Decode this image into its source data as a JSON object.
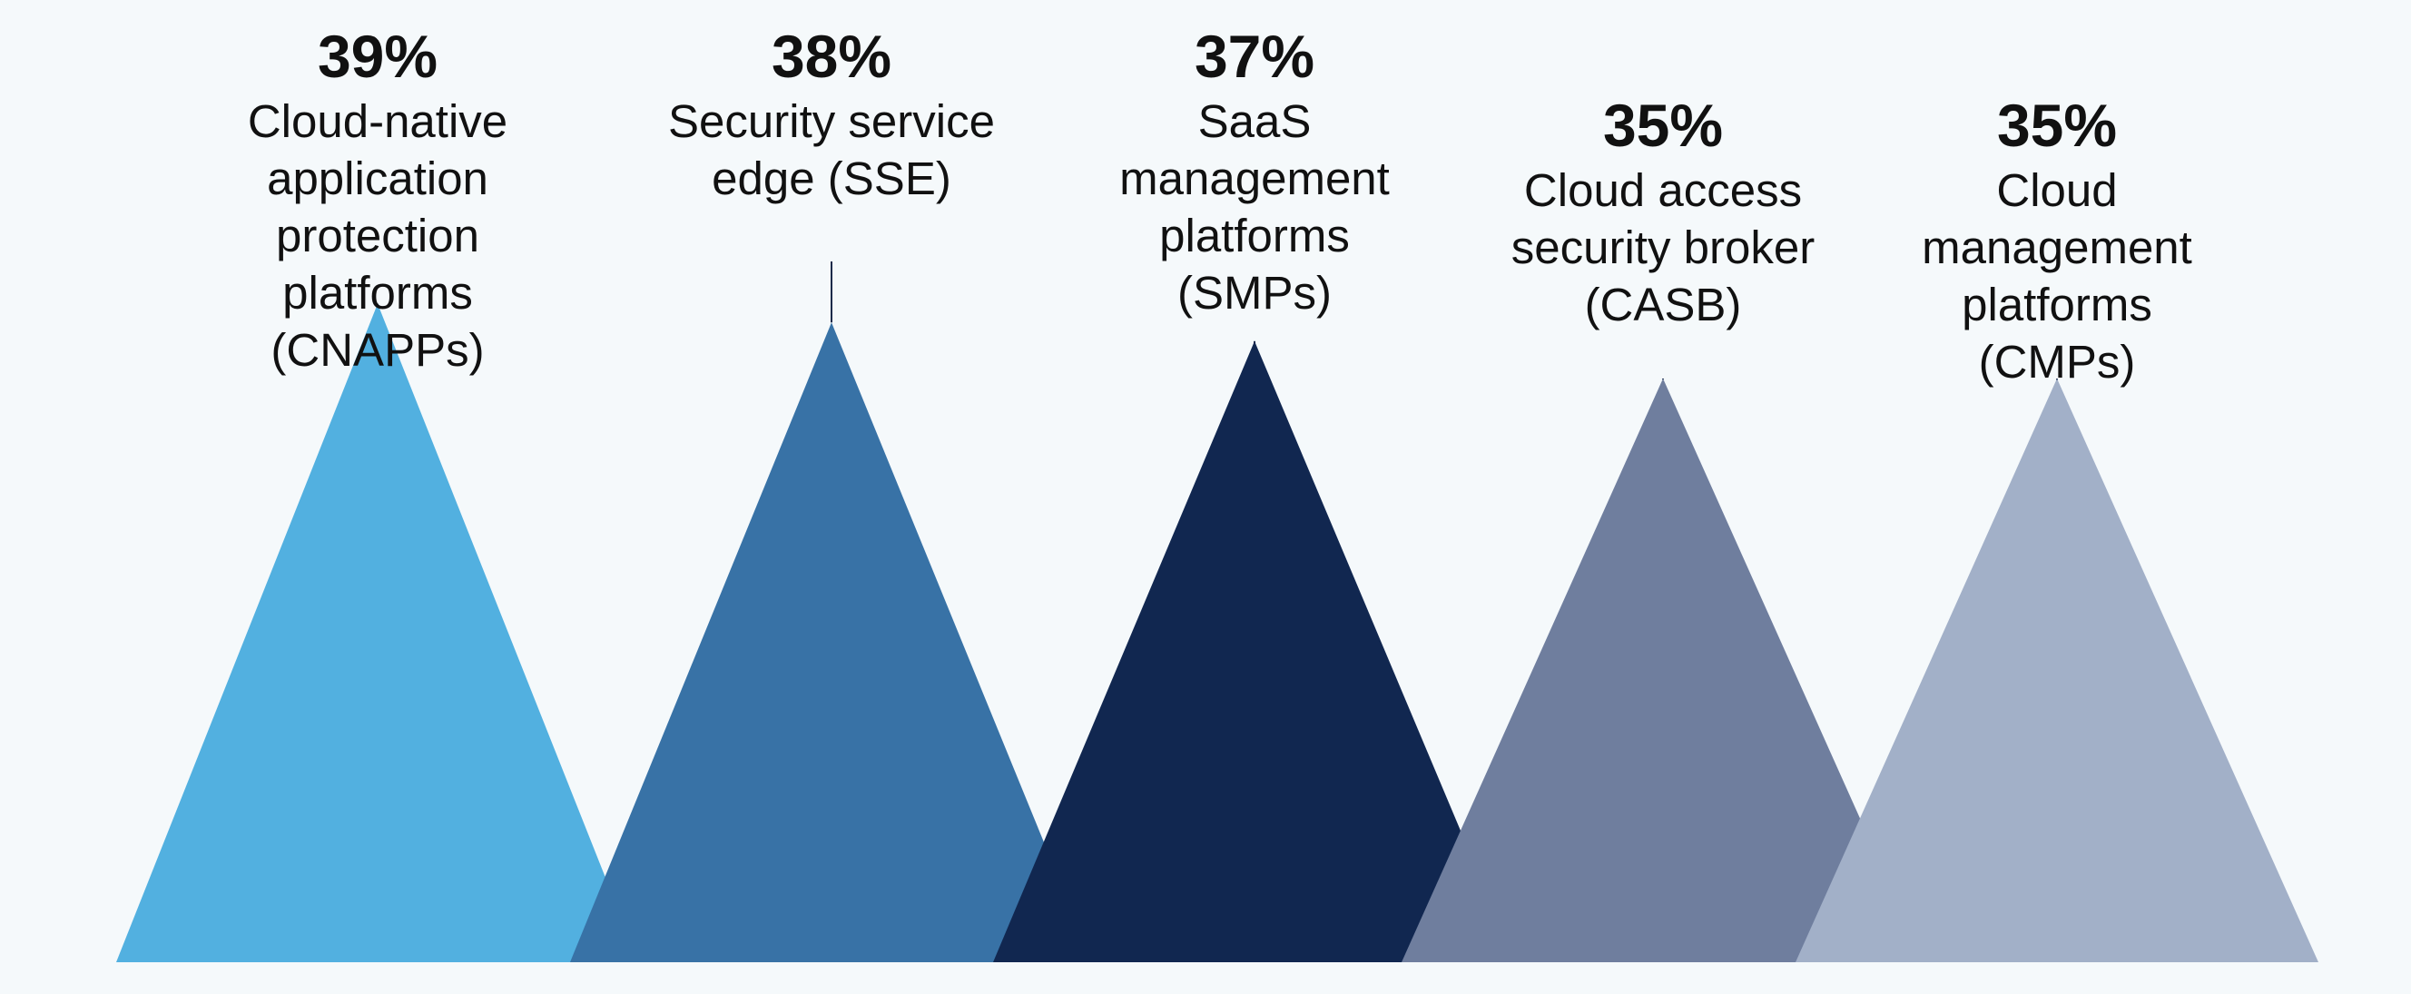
{
  "chart_data": {
    "type": "bar",
    "categories": [
      "Cloud-native application protection platforms (CNAPPs)",
      "Security service edge (SSE)",
      "SaaS management platforms (SMPs)",
      "Cloud access security broker (CASB)",
      "Cloud management platforms (CMPs)"
    ],
    "values": [
      39,
      38,
      37,
      35,
      35
    ],
    "value_labels": [
      "39%",
      "38%",
      "37%",
      "35%",
      "35%"
    ],
    "label_lines": [
      "Cloud-native\napplication\nprotection\nplatforms\n(CNAPPs)",
      "Security service\nedge (SSE)",
      "SaaS\nmanagement\nplatforms\n(SMPs)",
      "Cloud access\nsecurity broker\n(CASB)",
      "Cloud\nmanagement\nplatforms\n(CMPs)"
    ],
    "colors": [
      "#52b0e0",
      "#3872a6",
      "#112750",
      "#6f7e9e",
      "#a2b0c8"
    ],
    "title": "",
    "xlabel": "",
    "ylabel": "",
    "grid": false,
    "legend": "none"
  }
}
